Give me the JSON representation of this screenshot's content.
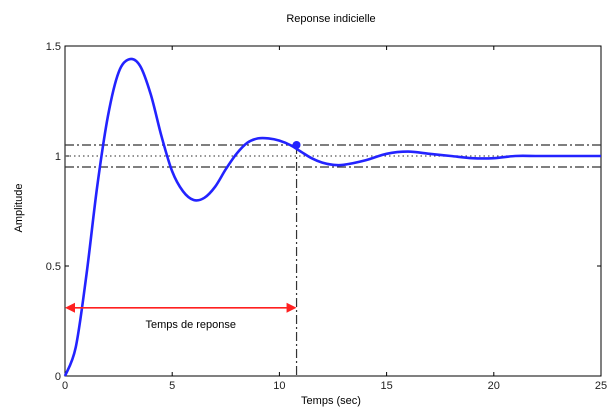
{
  "chart_data": {
    "type": "line",
    "title": "Reponse indicielle",
    "xlabel": "Temps (sec)",
    "ylabel": "Amplitude",
    "xlim": [
      0,
      25
    ],
    "ylim": [
      0,
      1.5
    ],
    "x_ticks": [
      0,
      5,
      10,
      15,
      20,
      25
    ],
    "y_ticks": [
      0,
      0.5,
      1,
      1.5
    ],
    "x_tick_labels": [
      "0",
      "5",
      "10",
      "15",
      "20",
      "25"
    ],
    "y_tick_labels": [
      "0",
      "0.5",
      "1",
      "1.5"
    ],
    "grid": false,
    "series": [
      {
        "color": "#2323ff",
        "x": [
          0,
          0.5,
          1,
          1.5,
          2,
          2.5,
          3,
          3.5,
          4,
          4.5,
          5,
          5.5,
          6,
          6.5,
          7,
          7.5,
          8,
          8.5,
          9,
          9.5,
          10,
          10.5,
          11,
          11.5,
          12,
          12.5,
          13,
          14,
          15,
          16,
          17,
          18,
          19,
          20,
          21,
          22,
          23,
          24,
          25
        ],
        "y": [
          0,
          0.13,
          0.46,
          0.86,
          1.18,
          1.38,
          1.44,
          1.41,
          1.28,
          1.09,
          0.93,
          0.84,
          0.8,
          0.81,
          0.86,
          0.94,
          1.01,
          1.06,
          1.08,
          1.08,
          1.07,
          1.05,
          1.02,
          0.99,
          0.97,
          0.96,
          0.96,
          0.98,
          1.01,
          1.02,
          1.01,
          1.0,
          0.99,
          0.99,
          1.0,
          1.0,
          1.0,
          1.0,
          1.0
        ]
      }
    ],
    "reference_lines": {
      "final_value": 1.0,
      "tolerance_band": [
        0.95,
        1.05
      ],
      "settling_time": 10.8,
      "settling_point": [
        10.8,
        1.05
      ]
    },
    "annotation": {
      "text": "Temps de reponse",
      "arrow_from": 0,
      "arrow_to": 10.8,
      "arrow_y": 0.31,
      "color": "#ff2020"
    }
  }
}
